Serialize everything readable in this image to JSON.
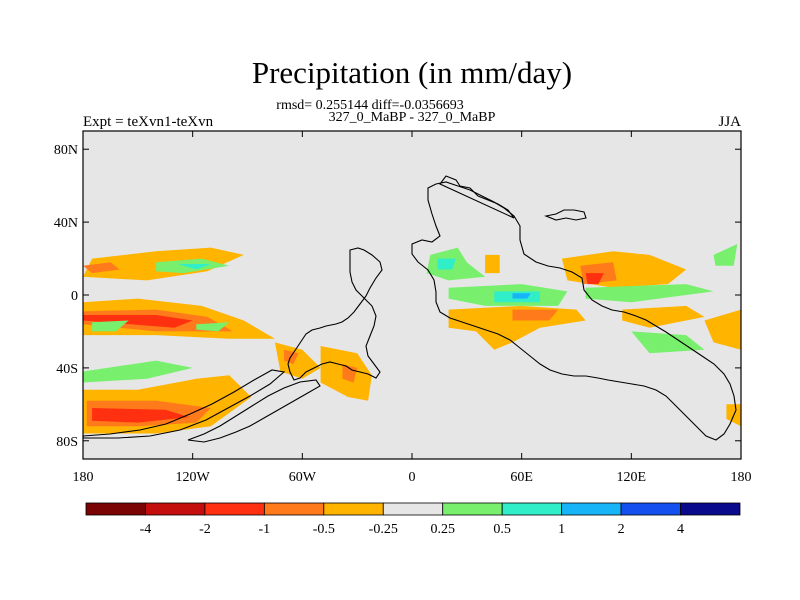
{
  "chart_data": {
    "type": "heatmap",
    "title": "Precipitation (in mm/day)",
    "stats_line": "rmsd= 0.255144 diff=-0.0356693",
    "period_line": "327_0_MaBP - 327_0_MaBP",
    "left_label": "Expt = teXvn1-teXvn",
    "right_label": "JJA",
    "x_ticks": [
      {
        "value": -180,
        "label": "180"
      },
      {
        "value": -120,
        "label": "120W"
      },
      {
        "value": -60,
        "label": "60W"
      },
      {
        "value": 0,
        "label": "0"
      },
      {
        "value": 60,
        "label": "60E"
      },
      {
        "value": 120,
        "label": "120E"
      },
      {
        "value": 180,
        "label": "180"
      }
    ],
    "y_ticks": [
      {
        "value": 80,
        "label": "80N"
      },
      {
        "value": 40,
        "label": "40N"
      },
      {
        "value": 0,
        "label": "0"
      },
      {
        "value": -40,
        "label": "40S"
      },
      {
        "value": -80,
        "label": "80S"
      }
    ],
    "xlim": [
      -180,
      180
    ],
    "ylim": [
      -90,
      90
    ],
    "colorbar": {
      "labels": [
        "-4",
        "-2",
        "-1",
        "-0.5",
        "-0.25",
        "0.25",
        "0.5",
        "1",
        "2",
        "4"
      ],
      "colors": [
        "#7a0403",
        "#c40d0d",
        "#ff3010",
        "#ff7a1a",
        "#ffb400",
        "#e6e6e6",
        "#78f06e",
        "#30eec8",
        "#18b4f8",
        "#1450f0",
        "#0a0a8c"
      ]
    },
    "anomaly_regions": [
      {
        "name": "n-pacific-band",
        "level": -0.25,
        "points": [
          [
            -175,
            20
          ],
          [
            -140,
            24
          ],
          [
            -110,
            26
          ],
          [
            -92,
            22
          ],
          [
            -112,
            13
          ],
          [
            -145,
            8
          ],
          [
            -180,
            10
          ]
        ]
      },
      {
        "name": "n-pacific-core",
        "level": -0.5,
        "points": [
          [
            -180,
            16
          ],
          [
            -165,
            18
          ],
          [
            -160,
            14
          ],
          [
            -175,
            12
          ]
        ]
      },
      {
        "name": "n-pacific-wet",
        "level": 0.25,
        "points": [
          [
            -140,
            18
          ],
          [
            -115,
            20
          ],
          [
            -100,
            16
          ],
          [
            -125,
            12
          ],
          [
            -140,
            13
          ]
        ]
      },
      {
        "name": "n-pacific-wet-core",
        "level": 0.5,
        "points": [
          [
            -128,
            17
          ],
          [
            -110,
            17
          ],
          [
            -118,
            14
          ]
        ]
      },
      {
        "name": "s-pacific-dry-band",
        "level": -0.25,
        "points": [
          [
            -180,
            -4
          ],
          [
            -150,
            -2
          ],
          [
            -115,
            -6
          ],
          [
            -92,
            -14
          ],
          [
            -75,
            -24
          ],
          [
            -100,
            -24
          ],
          [
            -140,
            -22
          ],
          [
            -180,
            -22
          ]
        ]
      },
      {
        "name": "s-pacific-dry-mid",
        "level": -0.5,
        "points": [
          [
            -180,
            -9
          ],
          [
            -140,
            -8
          ],
          [
            -112,
            -12
          ],
          [
            -98,
            -20
          ],
          [
            -140,
            -20
          ],
          [
            -180,
            -16
          ]
        ]
      },
      {
        "name": "s-pacific-dry-core",
        "level": -1,
        "points": [
          [
            -180,
            -11
          ],
          [
            -140,
            -11
          ],
          [
            -120,
            -14
          ],
          [
            -130,
            -18
          ],
          [
            -180,
            -14
          ]
        ]
      },
      {
        "name": "s-pacific-wet",
        "level": 0.25,
        "points": [
          [
            -175,
            -15
          ],
          [
            -155,
            -14
          ],
          [
            -162,
            -20
          ],
          [
            -175,
            -20
          ]
        ]
      },
      {
        "name": "s-pacific-wet-2",
        "level": 0.25,
        "points": [
          [
            -118,
            -16
          ],
          [
            -100,
            -15
          ],
          [
            -106,
            -20
          ],
          [
            -118,
            -19
          ]
        ]
      },
      {
        "name": "s-pacific-wet-3",
        "level": 0.25,
        "points": [
          [
            -180,
            -42
          ],
          [
            -140,
            -36
          ],
          [
            -120,
            -40
          ],
          [
            -145,
            -46
          ],
          [
            -180,
            -48
          ]
        ]
      },
      {
        "name": "southern-ocean-dry",
        "level": -0.25,
        "points": [
          [
            -180,
            -52
          ],
          [
            -150,
            -52
          ],
          [
            -118,
            -46
          ],
          [
            -100,
            -44
          ],
          [
            -88,
            -56
          ],
          [
            -110,
            -72
          ],
          [
            -140,
            -76
          ],
          [
            -180,
            -76
          ]
        ]
      },
      {
        "name": "southern-ocean-dry-mid",
        "level": -0.5,
        "points": [
          [
            -178,
            -58
          ],
          [
            -140,
            -58
          ],
          [
            -110,
            -62
          ],
          [
            -118,
            -70
          ],
          [
            -150,
            -72
          ],
          [
            -178,
            -72
          ]
        ]
      },
      {
        "name": "southern-ocean-dry-core",
        "level": -1,
        "points": [
          [
            -175,
            -62
          ],
          [
            -135,
            -63
          ],
          [
            -122,
            -67
          ],
          [
            -150,
            -70
          ],
          [
            -175,
            -69
          ]
        ]
      },
      {
        "name": "andes-dry",
        "level": -0.25,
        "points": [
          [
            -75,
            -26
          ],
          [
            -60,
            -30
          ],
          [
            -50,
            -40
          ],
          [
            -60,
            -46
          ],
          [
            -72,
            -42
          ]
        ]
      },
      {
        "name": "andes-dry-core",
        "level": -0.5,
        "points": [
          [
            -70,
            -30
          ],
          [
            -62,
            -32
          ],
          [
            -65,
            -38
          ],
          [
            -70,
            -36
          ]
        ]
      },
      {
        "name": "s-atlantic-dry",
        "level": -0.25,
        "points": [
          [
            -50,
            -28
          ],
          [
            -30,
            -32
          ],
          [
            -22,
            -44
          ],
          [
            -24,
            -58
          ],
          [
            -35,
            -56
          ],
          [
            -50,
            -48
          ]
        ]
      },
      {
        "name": "s-atlantic-dry-core",
        "level": -0.5,
        "points": [
          [
            -38,
            -38
          ],
          [
            -30,
            -40
          ],
          [
            -32,
            -48
          ],
          [
            -38,
            -46
          ]
        ]
      },
      {
        "name": "africa-wet",
        "level": 0.25,
        "points": [
          [
            10,
            22
          ],
          [
            25,
            26
          ],
          [
            30,
            18
          ],
          [
            40,
            10
          ],
          [
            20,
            8
          ],
          [
            8,
            12
          ]
        ]
      },
      {
        "name": "africa-wet-core",
        "level": 0.5,
        "points": [
          [
            14,
            20
          ],
          [
            24,
            20
          ],
          [
            22,
            14
          ],
          [
            14,
            14
          ]
        ]
      },
      {
        "name": "africa-dry",
        "level": -0.25,
        "points": [
          [
            40,
            22
          ],
          [
            48,
            22
          ],
          [
            48,
            12
          ],
          [
            40,
            12
          ]
        ]
      },
      {
        "name": "eq-atlantic-wet",
        "level": 0.25,
        "points": [
          [
            20,
            4
          ],
          [
            60,
            6
          ],
          [
            85,
            2
          ],
          [
            80,
            -6
          ],
          [
            40,
            -6
          ],
          [
            20,
            -2
          ]
        ]
      },
      {
        "name": "eq-indian-wet-core",
        "level": 0.5,
        "points": [
          [
            45,
            2
          ],
          [
            70,
            2
          ],
          [
            70,
            -4
          ],
          [
            45,
            -4
          ]
        ]
      },
      {
        "name": "eq-indian-wet-max",
        "level": 1,
        "points": [
          [
            55,
            1
          ],
          [
            65,
            1
          ],
          [
            63,
            -2
          ],
          [
            55,
            -2
          ]
        ]
      },
      {
        "name": "indian-dry",
        "level": -0.25,
        "points": [
          [
            20,
            -8
          ],
          [
            60,
            -6
          ],
          [
            90,
            -8
          ],
          [
            95,
            -14
          ],
          [
            70,
            -18
          ],
          [
            55,
            -26
          ],
          [
            45,
            -30
          ],
          [
            35,
            -20
          ],
          [
            20,
            -18
          ]
        ]
      },
      {
        "name": "indian-dry-core",
        "level": -0.5,
        "points": [
          [
            55,
            -8
          ],
          [
            80,
            -8
          ],
          [
            75,
            -14
          ],
          [
            55,
            -14
          ]
        ]
      },
      {
        "name": "asia-dry",
        "level": -0.25,
        "points": [
          [
            82,
            20
          ],
          [
            110,
            24
          ],
          [
            130,
            22
          ],
          [
            150,
            14
          ],
          [
            140,
            6
          ],
          [
            110,
            4
          ],
          [
            85,
            8
          ]
        ]
      },
      {
        "name": "asia-dry-core",
        "level": -0.5,
        "points": [
          [
            92,
            16
          ],
          [
            110,
            18
          ],
          [
            112,
            8
          ],
          [
            94,
            6
          ]
        ]
      },
      {
        "name": "asia-dry-max",
        "level": -1,
        "points": [
          [
            95,
            12
          ],
          [
            105,
            12
          ],
          [
            102,
            6
          ],
          [
            96,
            6
          ]
        ]
      },
      {
        "name": "w-pacific-wet",
        "level": 0.25,
        "points": [
          [
            95,
            4
          ],
          [
            150,
            6
          ],
          [
            165,
            2
          ],
          [
            120,
            -4
          ],
          [
            95,
            -2
          ]
        ]
      },
      {
        "name": "w-pacific-dry",
        "level": -0.25,
        "points": [
          [
            115,
            -8
          ],
          [
            150,
            -6
          ],
          [
            160,
            -12
          ],
          [
            130,
            -18
          ],
          [
            115,
            -14
          ]
        ]
      },
      {
        "name": "w-pacific-wet-2",
        "level": 0.25,
        "points": [
          [
            120,
            -20
          ],
          [
            150,
            -22
          ],
          [
            160,
            -30
          ],
          [
            130,
            -32
          ]
        ]
      },
      {
        "name": "e-pacific-dry",
        "level": -0.25,
        "points": [
          [
            160,
            -14
          ],
          [
            180,
            -8
          ],
          [
            180,
            -30
          ],
          [
            165,
            -26
          ]
        ]
      },
      {
        "name": "tropics-wet-east",
        "level": 0.25,
        "points": [
          [
            165,
            22
          ],
          [
            178,
            28
          ],
          [
            176,
            16
          ],
          [
            166,
            16
          ]
        ]
      },
      {
        "name": "s-ocean-east-dry",
        "level": -0.25,
        "points": [
          [
            172,
            -60
          ],
          [
            180,
            -60
          ],
          [
            180,
            -72
          ],
          [
            172,
            -68
          ]
        ]
      }
    ]
  }
}
